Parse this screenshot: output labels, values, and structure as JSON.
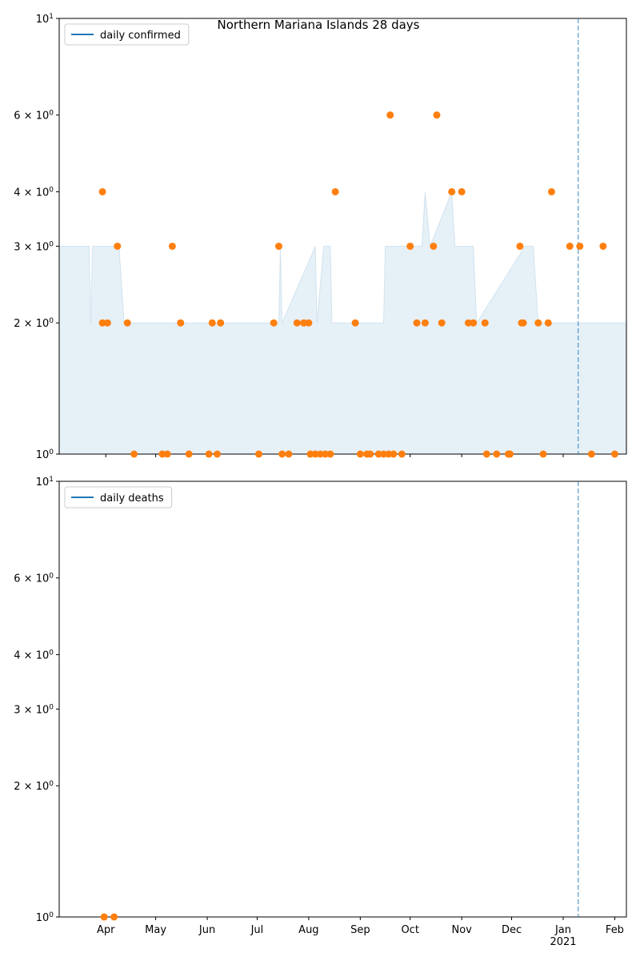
{
  "chart_data": [
    {
      "type": "scatter",
      "title": "Northern Mariana Islands 28 days",
      "log_y": true,
      "ylim": [
        1,
        10
      ],
      "yticks": [
        {
          "value": 1,
          "label": "10^0"
        },
        {
          "value": 2,
          "label": "2 × 10^0"
        },
        {
          "value": 3,
          "label": "3 × 10^0"
        },
        {
          "value": 4,
          "label": "4 × 10^0"
        },
        {
          "value": 6,
          "label": "6 × 10^0"
        },
        {
          "value": 10,
          "label": "10^1"
        }
      ],
      "xlim": [
        "2020-03-04",
        "2021-02-08"
      ],
      "xticks": [
        "2020-04-01",
        "2020-05-01",
        "2020-06-01",
        "2020-07-01",
        "2020-08-01",
        "2020-09-01",
        "2020-10-01",
        "2020-11-01",
        "2020-12-01",
        "2021-01-01",
        "2021-02-01"
      ],
      "legend": {
        "label": "daily confirmed",
        "color": "#1f77b4",
        "loc": "upper left"
      },
      "vline": {
        "x": "2021-01-10",
        "color": "#1f77b4",
        "style": "dashed"
      },
      "fill": {
        "color": "#1f77b4",
        "x": [
          "2020-03-04",
          "2020-03-22",
          "2020-03-23",
          "2020-03-24",
          "2020-04-09",
          "2020-04-12",
          "2020-07-14",
          "2020-07-15",
          "2020-07-16",
          "2020-08-05",
          "2020-08-06",
          "2020-08-10",
          "2020-08-14",
          "2020-08-15",
          "2020-09-15",
          "2020-09-16",
          "2020-10-08",
          "2020-10-10",
          "2020-10-13",
          "2020-10-26",
          "2020-10-28",
          "2020-11-08",
          "2020-11-10",
          "2020-12-09",
          "2020-12-14",
          "2020-12-17",
          "2021-02-08"
        ],
        "upper": [
          3,
          3,
          2,
          3,
          3,
          2,
          2,
          3,
          2,
          3,
          2,
          3,
          3,
          2,
          2,
          3,
          3,
          4,
          3,
          4,
          3,
          3,
          2,
          3,
          3,
          2,
          2
        ]
      },
      "points": {
        "color": "#ff7f0e",
        "x": [
          "2020-03-30",
          "2020-03-30",
          "2020-04-02",
          "2020-04-08",
          "2020-04-14",
          "2020-04-18",
          "2020-05-05",
          "2020-05-08",
          "2020-05-11",
          "2020-05-16",
          "2020-05-21",
          "2020-06-02",
          "2020-06-04",
          "2020-06-07",
          "2020-06-09",
          "2020-07-02",
          "2020-07-11",
          "2020-07-14",
          "2020-07-16",
          "2020-07-20",
          "2020-07-25",
          "2020-07-29",
          "2020-08-01",
          "2020-08-02",
          "2020-08-05",
          "2020-08-08",
          "2020-08-11",
          "2020-08-14",
          "2020-08-17",
          "2020-08-29",
          "2020-09-01",
          "2020-09-05",
          "2020-09-07",
          "2020-09-12",
          "2020-09-15",
          "2020-09-18",
          "2020-09-19",
          "2020-09-21",
          "2020-09-26",
          "2020-10-01",
          "2020-10-05",
          "2020-10-10",
          "2020-10-15",
          "2020-10-17",
          "2020-10-20",
          "2020-10-26",
          "2020-11-01",
          "2020-11-05",
          "2020-11-08",
          "2020-11-15",
          "2020-11-16",
          "2020-11-22",
          "2020-11-29",
          "2020-11-30",
          "2020-12-06",
          "2020-12-07",
          "2020-12-08",
          "2020-12-17",
          "2020-12-20",
          "2020-12-23",
          "2020-12-25",
          "2021-01-05",
          "2021-01-11",
          "2021-01-18",
          "2021-01-25",
          "2021-02-01"
        ],
        "values": [
          4,
          2,
          2,
          3,
          2,
          1,
          1,
          1,
          3,
          2,
          1,
          1,
          2,
          1,
          2,
          1,
          2,
          3,
          1,
          1,
          2,
          2,
          2,
          1,
          1,
          1,
          1,
          1,
          4,
          2,
          1,
          1,
          1,
          1,
          1,
          1,
          6,
          1,
          1,
          3,
          2,
          2,
          3,
          6,
          2,
          4,
          4,
          2,
          2,
          2,
          1,
          1,
          1,
          1,
          3,
          2,
          2,
          2,
          1,
          2,
          4,
          3,
          3,
          1,
          3,
          1
        ]
      }
    },
    {
      "type": "scatter",
      "log_y": true,
      "ylim": [
        1,
        10
      ],
      "yticks": [
        {
          "value": 1,
          "label": "10^0"
        },
        {
          "value": 2,
          "label": "2 × 10^0"
        },
        {
          "value": 3,
          "label": "3 × 10^0"
        },
        {
          "value": 4,
          "label": "4 × 10^0"
        },
        {
          "value": 6,
          "label": "6 × 10^0"
        },
        {
          "value": 10,
          "label": "10^1"
        }
      ],
      "xlim": [
        "2020-03-04",
        "2021-02-08"
      ],
      "xticks": [
        {
          "value": "2020-04-01",
          "label": "Apr"
        },
        {
          "value": "2020-05-01",
          "label": "May"
        },
        {
          "value": "2020-06-01",
          "label": "Jun"
        },
        {
          "value": "2020-07-01",
          "label": "Jul"
        },
        {
          "value": "2020-08-01",
          "label": "Aug"
        },
        {
          "value": "2020-09-01",
          "label": "Sep"
        },
        {
          "value": "2020-10-01",
          "label": "Oct"
        },
        {
          "value": "2020-11-01",
          "label": "Nov"
        },
        {
          "value": "2020-12-01",
          "label": "Dec"
        },
        {
          "value": "2021-01-01",
          "label": "Jan\n2021"
        },
        {
          "value": "2021-02-01",
          "label": "Feb"
        }
      ],
      "legend": {
        "label": "daily deaths",
        "color": "#1f77b4",
        "loc": "upper left"
      },
      "vline": {
        "x": "2021-01-10",
        "color": "#1f77b4",
        "style": "dashed"
      },
      "points": {
        "color": "#ff7f0e",
        "x": [
          "2020-03-31",
          "2020-04-06"
        ],
        "values": [
          1,
          1
        ]
      }
    }
  ]
}
